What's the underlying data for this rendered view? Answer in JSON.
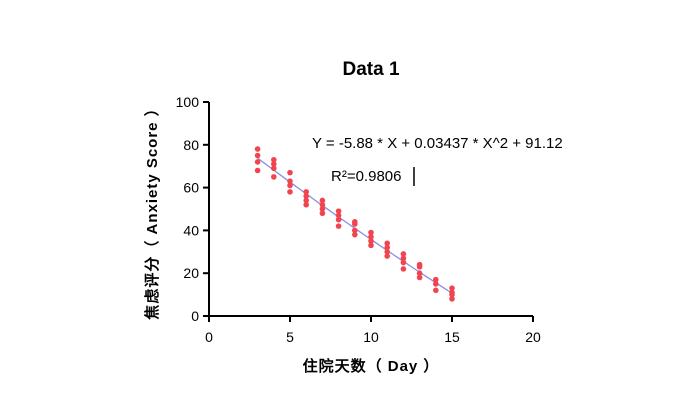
{
  "chart_data": {
    "type": "scatter",
    "title": "Data 1",
    "xlabel": "住院天数（ Day ）",
    "ylabel": "焦虑评分（ Anxiety Score ）",
    "xlim": [
      0,
      20
    ],
    "ylim": [
      0,
      100
    ],
    "x_ticks": [
      "0",
      "5",
      "10",
      "15",
      "20"
    ],
    "y_ticks": [
      "0",
      "20",
      "40",
      "60",
      "80",
      "100"
    ],
    "grid": false,
    "colors": {
      "points": "#f0454f",
      "fit_line": "#8c8ce6",
      "axes": "#000000"
    },
    "series": [
      {
        "kind": "points",
        "points": [
          [
            3,
            78
          ],
          [
            3,
            75
          ],
          [
            3,
            72
          ],
          [
            3,
            68
          ],
          [
            4,
            73
          ],
          [
            4,
            71
          ],
          [
            4,
            69
          ],
          [
            4,
            65
          ],
          [
            5,
            67
          ],
          [
            5,
            63
          ],
          [
            5,
            61
          ],
          [
            5,
            58
          ],
          [
            6,
            58
          ],
          [
            6,
            56
          ],
          [
            6,
            54
          ],
          [
            6,
            52
          ],
          [
            7,
            54
          ],
          [
            7,
            52
          ],
          [
            7,
            50
          ],
          [
            7,
            48
          ],
          [
            8,
            49
          ],
          [
            8,
            47
          ],
          [
            8,
            45
          ],
          [
            8,
            42
          ],
          [
            9,
            44
          ],
          [
            9,
            43
          ],
          [
            9,
            40
          ],
          [
            9,
            38
          ],
          [
            10,
            39
          ],
          [
            10,
            37
          ],
          [
            10,
            35
          ],
          [
            10,
            33
          ],
          [
            11,
            34
          ],
          [
            11,
            32
          ],
          [
            11,
            30
          ],
          [
            11,
            28
          ],
          [
            12,
            29
          ],
          [
            12,
            27
          ],
          [
            12,
            25
          ],
          [
            12,
            22
          ],
          [
            13,
            24
          ],
          [
            13,
            23
          ],
          [
            13,
            20
          ],
          [
            13,
            18
          ],
          [
            14,
            17
          ],
          [
            14,
            15
          ],
          [
            14,
            12
          ],
          [
            15,
            13
          ],
          [
            15,
            11
          ],
          [
            15,
            10
          ],
          [
            15,
            8
          ]
        ]
      },
      {
        "kind": "fit",
        "coefficients": {
          "x": -5.88,
          "x2": 0.03437,
          "intercept": 91.12
        },
        "x_range": [
          3,
          15
        ]
      }
    ],
    "annotations": {
      "equation": "Y = -5.88 * X + 0.03437 * X^2 + 91.12",
      "r_squared": "R²=0.9806"
    }
  }
}
